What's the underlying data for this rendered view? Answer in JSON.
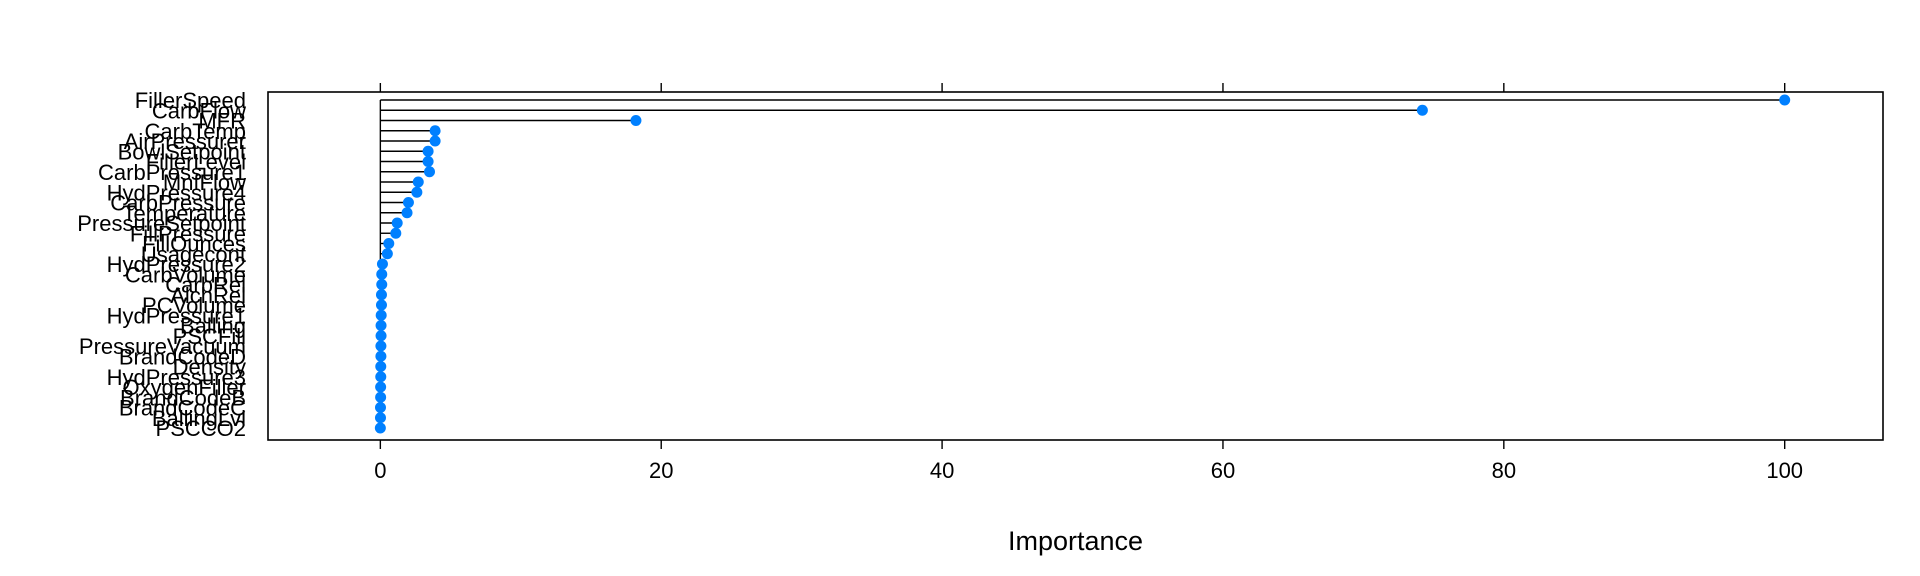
{
  "chart_data": {
    "type": "lollipop",
    "xlabel": "Importance",
    "xlim": [
      -8,
      107
    ],
    "x_ticks": [
      0,
      20,
      40,
      60,
      80,
      100
    ],
    "marker_color": "#0080ff",
    "stem_color": "#000000",
    "categories": [
      "FillerSpeed",
      "CarbFlow",
      "MFR",
      "CarbTemp",
      "AirPressurer",
      "BowlSetpoint",
      "FillerLevel",
      "CarbPressure1",
      "MnfFlow",
      "HydPressure4",
      "CarbPressure",
      "Temperature",
      "PressureSetpoint",
      "FillPressure",
      "FillOunces",
      "Usagecont",
      "HydPressure2",
      "CarbVolume",
      "CarbRel",
      "AlchRel",
      "PCVolume",
      "HydPressure1",
      "Balling",
      "PSCFill",
      "PressureVacuum",
      "BrandCodeD",
      "Density",
      "HydPressure3",
      "OxygenFiller",
      "BrandCodeB",
      "BrandCodeC",
      "BallingLvl",
      "PSCCO2"
    ],
    "values": [
      100,
      74.2,
      18.2,
      3.9,
      3.9,
      3.4,
      3.4,
      3.5,
      2.7,
      2.6,
      2.0,
      1.9,
      1.2,
      1.1,
      0.6,
      0.5,
      0.15,
      0.1,
      0.1,
      0.08,
      0.08,
      0.06,
      0.05,
      0.05,
      0.04,
      0.04,
      0.03,
      0.03,
      0.02,
      0.02,
      0.01,
      0.01,
      0.0
    ]
  }
}
